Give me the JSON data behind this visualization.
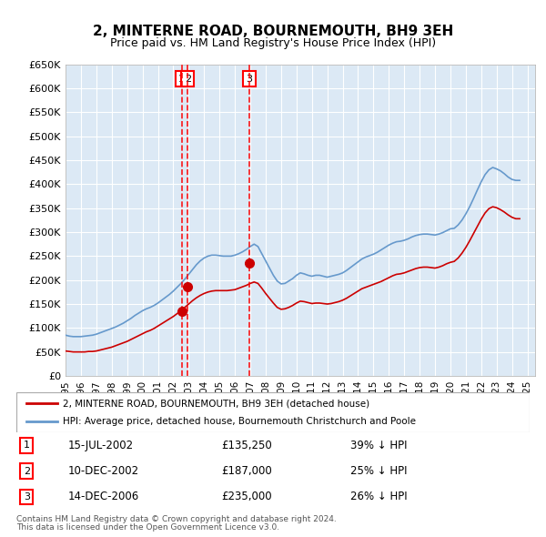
{
  "title": "2, MINTERNE ROAD, BOURNEMOUTH, BH9 3EH",
  "subtitle": "Price paid vs. HM Land Registry's House Price Index (HPI)",
  "ylabel_ticks": [
    "£0",
    "£50K",
    "£100K",
    "£150K",
    "£200K",
    "£250K",
    "£300K",
    "£350K",
    "£400K",
    "£450K",
    "£500K",
    "£550K",
    "£600K",
    "£650K"
  ],
  "ylim": [
    0,
    650000
  ],
  "ytick_values": [
    0,
    50000,
    100000,
    150000,
    200000,
    250000,
    300000,
    350000,
    400000,
    450000,
    500000,
    550000,
    600000,
    650000
  ],
  "xlim_start": 1995.0,
  "xlim_end": 2025.5,
  "legend_line1": "2, MINTERNE ROAD, BOURNEMOUTH, BH9 3EH (detached house)",
  "legend_line2": "HPI: Average price, detached house, Bournemouth Christchurch and Poole",
  "transactions": [
    {
      "id": 1,
      "date": "15-JUL-2002",
      "price": 135250,
      "pct": "39% ↓ HPI",
      "date_num": 2002.54
    },
    {
      "id": 2,
      "date": "10-DEC-2002",
      "price": 187000,
      "pct": "25% ↓ HPI",
      "date_num": 2002.94
    },
    {
      "id": 3,
      "date": "14-DEC-2006",
      "price": 235000,
      "pct": "26% ↓ HPI",
      "date_num": 2006.95
    }
  ],
  "footnote1": "Contains HM Land Registry data © Crown copyright and database right 2024.",
  "footnote2": "This data is licensed under the Open Government Licence v3.0.",
  "chart_bg": "#dce9f5",
  "fig_bg": "#ffffff",
  "hpi_line_color": "#6699cc",
  "price_line_color": "#cc0000",
  "grid_color": "#ffffff",
  "transaction_marker_color": "#cc0000",
  "vline_color": "#ff0000",
  "hpi_data_x": [
    1995.0,
    1995.25,
    1995.5,
    1995.75,
    1996.0,
    1996.25,
    1996.5,
    1996.75,
    1997.0,
    1997.25,
    1997.5,
    1997.75,
    1998.0,
    1998.25,
    1998.5,
    1998.75,
    1999.0,
    1999.25,
    1999.5,
    1999.75,
    2000.0,
    2000.25,
    2000.5,
    2000.75,
    2001.0,
    2001.25,
    2001.5,
    2001.75,
    2002.0,
    2002.25,
    2002.5,
    2002.75,
    2003.0,
    2003.25,
    2003.5,
    2003.75,
    2004.0,
    2004.25,
    2004.5,
    2004.75,
    2005.0,
    2005.25,
    2005.5,
    2005.75,
    2006.0,
    2006.25,
    2006.5,
    2006.75,
    2007.0,
    2007.25,
    2007.5,
    2007.75,
    2008.0,
    2008.25,
    2008.5,
    2008.75,
    2009.0,
    2009.25,
    2009.5,
    2009.75,
    2010.0,
    2010.25,
    2010.5,
    2010.75,
    2011.0,
    2011.25,
    2011.5,
    2011.75,
    2012.0,
    2012.25,
    2012.5,
    2012.75,
    2013.0,
    2013.25,
    2013.5,
    2013.75,
    2014.0,
    2014.25,
    2014.5,
    2014.75,
    2015.0,
    2015.25,
    2015.5,
    2015.75,
    2016.0,
    2016.25,
    2016.5,
    2016.75,
    2017.0,
    2017.25,
    2017.5,
    2017.75,
    2018.0,
    2018.25,
    2018.5,
    2018.75,
    2019.0,
    2019.25,
    2019.5,
    2019.75,
    2020.0,
    2020.25,
    2020.5,
    2020.75,
    2021.0,
    2021.25,
    2021.5,
    2021.75,
    2022.0,
    2022.25,
    2022.5,
    2022.75,
    2023.0,
    2023.25,
    2023.5,
    2023.75,
    2024.0,
    2024.25,
    2024.5
  ],
  "hpi_data_y": [
    85000,
    83000,
    82000,
    82000,
    82000,
    83000,
    84000,
    85000,
    87000,
    90000,
    93000,
    96000,
    99000,
    102000,
    106000,
    110000,
    115000,
    120000,
    126000,
    131000,
    136000,
    140000,
    143000,
    147000,
    152000,
    158000,
    164000,
    170000,
    177000,
    185000,
    193000,
    202000,
    212000,
    222000,
    232000,
    240000,
    246000,
    250000,
    252000,
    252000,
    251000,
    250000,
    250000,
    250000,
    252000,
    255000,
    259000,
    264000,
    270000,
    275000,
    270000,
    255000,
    240000,
    225000,
    210000,
    198000,
    192000,
    193000,
    198000,
    203000,
    210000,
    215000,
    213000,
    210000,
    208000,
    210000,
    210000,
    208000,
    206000,
    208000,
    210000,
    212000,
    215000,
    220000,
    226000,
    232000,
    238000,
    244000,
    248000,
    251000,
    254000,
    258000,
    263000,
    268000,
    273000,
    277000,
    280000,
    281000,
    283000,
    286000,
    290000,
    293000,
    295000,
    296000,
    296000,
    295000,
    294000,
    296000,
    299000,
    303000,
    307000,
    308000,
    315000,
    325000,
    338000,
    353000,
    370000,
    388000,
    405000,
    420000,
    430000,
    435000,
    432000,
    428000,
    422000,
    415000,
    410000,
    408000,
    408000
  ],
  "price_data_x": [
    1995.0,
    1995.25,
    1995.5,
    1995.75,
    1996.0,
    1996.25,
    1996.5,
    1996.75,
    1997.0,
    1997.25,
    1997.5,
    1997.75,
    1998.0,
    1998.25,
    1998.5,
    1998.75,
    1999.0,
    1999.25,
    1999.5,
    1999.75,
    2000.0,
    2000.25,
    2000.5,
    2000.75,
    2001.0,
    2001.25,
    2001.5,
    2001.75,
    2002.0,
    2002.25,
    2002.5,
    2002.75,
    2003.0,
    2003.25,
    2003.5,
    2003.75,
    2004.0,
    2004.25,
    2004.5,
    2004.75,
    2005.0,
    2005.25,
    2005.5,
    2005.75,
    2006.0,
    2006.25,
    2006.5,
    2006.75,
    2007.0,
    2007.25,
    2007.5,
    2007.75,
    2008.0,
    2008.25,
    2008.5,
    2008.75,
    2009.0,
    2009.25,
    2009.5,
    2009.75,
    2010.0,
    2010.25,
    2010.5,
    2010.75,
    2011.0,
    2011.25,
    2011.5,
    2011.75,
    2012.0,
    2012.25,
    2012.5,
    2012.75,
    2013.0,
    2013.25,
    2013.5,
    2013.75,
    2014.0,
    2014.25,
    2014.5,
    2014.75,
    2015.0,
    2015.25,
    2015.5,
    2015.75,
    2016.0,
    2016.25,
    2016.5,
    2016.75,
    2017.0,
    2017.25,
    2017.5,
    2017.75,
    2018.0,
    2018.25,
    2018.5,
    2018.75,
    2019.0,
    2019.25,
    2019.5,
    2019.75,
    2020.0,
    2020.25,
    2020.5,
    2020.75,
    2021.0,
    2021.25,
    2021.5,
    2021.75,
    2022.0,
    2022.25,
    2022.5,
    2022.75,
    2023.0,
    2023.25,
    2023.5,
    2023.75,
    2024.0,
    2024.25,
    2024.5
  ],
  "price_data_y": [
    52000,
    51000,
    50000,
    50000,
    50000,
    50000,
    51000,
    51000,
    52000,
    54000,
    56000,
    58000,
    60000,
    63000,
    66000,
    69000,
    72000,
    76000,
    80000,
    84000,
    88000,
    92000,
    95000,
    99000,
    104000,
    109000,
    114000,
    119000,
    124000,
    130000,
    136000,
    143000,
    150000,
    157000,
    163000,
    168000,
    172000,
    175000,
    177000,
    178000,
    178000,
    178000,
    178000,
    179000,
    180000,
    183000,
    186000,
    189000,
    193000,
    196000,
    193000,
    183000,
    172000,
    162000,
    152000,
    143000,
    139000,
    140000,
    143000,
    147000,
    152000,
    156000,
    155000,
    153000,
    151000,
    152000,
    152000,
    151000,
    150000,
    151000,
    153000,
    155000,
    158000,
    162000,
    167000,
    172000,
    177000,
    182000,
    185000,
    188000,
    191000,
    194000,
    197000,
    201000,
    205000,
    209000,
    212000,
    213000,
    215000,
    218000,
    221000,
    224000,
    226000,
    227000,
    227000,
    226000,
    225000,
    227000,
    230000,
    234000,
    237000,
    239000,
    246000,
    256000,
    268000,
    282000,
    297000,
    312000,
    327000,
    340000,
    349000,
    353000,
    351000,
    347000,
    342000,
    336000,
    331000,
    328000,
    328000
  ]
}
